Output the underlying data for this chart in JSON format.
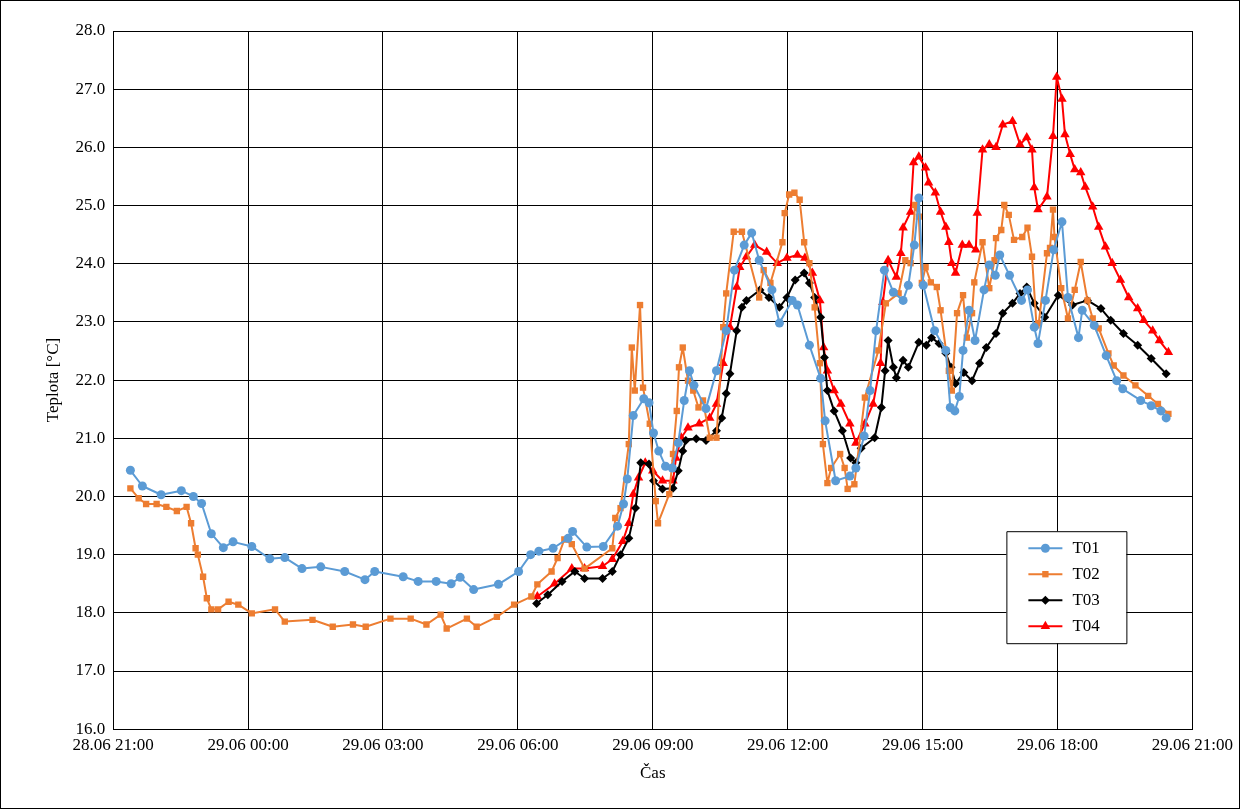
{
  "chart_data": {
    "type": "line",
    "xlabel": "Čas",
    "ylabel": "Teplota [°C]",
    "xlim": [
      "--06-28T21:00",
      "--06-29T21:00"
    ],
    "xticks": [
      {
        "value": "--06-28T21:00",
        "label": "28.06 21:00"
      },
      {
        "value": "--06-29T00:00",
        "label": "29.06 00:00"
      },
      {
        "value": "--06-29T03:00",
        "label": "29.06 03:00"
      },
      {
        "value": "--06-29T06:00",
        "label": "29.06 06:00"
      },
      {
        "value": "--06-29T09:00",
        "label": "29.06 09:00"
      },
      {
        "value": "--06-29T12:00",
        "label": "29.06 12:00"
      },
      {
        "value": "--06-29T15:00",
        "label": "29.06 15:00"
      },
      {
        "value": "--06-29T18:00",
        "label": "29.06 18:00"
      },
      {
        "value": "--06-29T21:00",
        "label": "29.06 21:00"
      }
    ],
    "ylim": [
      16,
      28
    ],
    "yticks": [
      {
        "value": 16,
        "label": "16.0"
      },
      {
        "value": 17,
        "label": "17.0"
      },
      {
        "value": 18,
        "label": "18.0"
      },
      {
        "value": 19,
        "label": "19.0"
      },
      {
        "value": 20,
        "label": "20.0"
      },
      {
        "value": 21,
        "label": "21.0"
      },
      {
        "value": 22,
        "label": "22.0"
      },
      {
        "value": 23,
        "label": "23.0"
      },
      {
        "value": 24,
        "label": "24.0"
      },
      {
        "value": 25,
        "label": "25.0"
      },
      {
        "value": 26,
        "label": "26.0"
      },
      {
        "value": 27,
        "label": "27.0"
      },
      {
        "value": 28,
        "label": "28.0"
      }
    ],
    "grid": true,
    "legend": "bottom right",
    "line_style": "solid",
    "series": [
      {
        "name": "T01",
        "color": "#5b9bd5",
        "marker": "circle",
        "x": [
          "--06-28T21:23",
          "--06-28T21:39",
          "--06-28T22:04",
          "--06-28T22:31",
          "--06-28T22:47",
          "--06-28T22:58",
          "--06-28T23:11",
          "--06-28T23:27",
          "--06-28T23:40",
          "--06-29T00:05",
          "--06-29T00:29",
          "--06-29T00:49",
          "--06-29T01:12",
          "--06-29T01:37",
          "--06-29T02:09",
          "--06-29T02:36",
          "--06-29T02:49",
          "--06-29T03:27",
          "--06-29T03:47",
          "--06-29T04:11",
          "--06-29T04:31",
          "--06-29T04:43",
          "--06-29T05:01",
          "--06-29T05:34",
          "--06-29T06:01",
          "--06-29T06:17",
          "--06-29T06:28",
          "--06-29T06:47",
          "--06-29T07:07",
          "--06-29T07:13",
          "--06-29T07:32",
          "--06-29T07:54",
          "--06-29T08:13",
          "--06-29T08:21",
          "--06-29T08:26",
          "--06-29T08:34",
          "--06-29T08:48",
          "--06-29T08:55",
          "--06-29T09:01",
          "--06-29T09:08",
          "--06-29T09:17",
          "--06-29T09:26",
          "--06-29T09:34",
          "--06-29T09:42",
          "--06-29T09:49",
          "--06-29T09:55",
          "--06-29T10:11",
          "--06-29T10:25",
          "--06-29T10:38",
          "--06-29T10:49",
          "--06-29T11:02",
          "--06-29T11:12",
          "--06-29T11:22",
          "--06-29T11:39",
          "--06-29T11:49",
          "--06-29T12:06",
          "--06-29T12:13",
          "--06-29T12:29",
          "--06-29T12:44",
          "--06-29T12:50",
          "--06-29T13:04",
          "--06-29T13:23",
          "--06-29T13:31",
          "--06-29T13:42",
          "--06-29T13:50",
          "--06-29T13:58",
          "--06-29T14:09",
          "--06-29T14:21",
          "--06-29T14:34",
          "--06-29T14:41",
          "--06-29T14:49",
          "--06-29T14:55",
          "--06-29T15:01",
          "--06-29T15:16",
          "--06-29T15:31",
          "--06-29T15:37",
          "--06-29T15:43",
          "--06-29T15:49",
          "--06-29T15:54",
          "--06-29T16:02",
          "--06-29T16:10",
          "--06-29T16:22",
          "--06-29T16:29",
          "--06-29T16:37",
          "--06-29T16:43",
          "--06-29T16:56",
          "--06-29T17:12",
          "--06-29T17:20",
          "--06-29T17:29",
          "--06-29T17:34",
          "--06-29T17:44",
          "--06-29T17:55",
          "--06-29T18:06",
          "--06-29T18:14",
          "--06-29T18:28",
          "--06-29T18:33",
          "--06-29T18:49",
          "--06-29T19:05",
          "--06-29T19:19",
          "--06-29T19:27",
          "--06-29T19:51",
          "--06-29T20:05",
          "--06-29T20:18",
          "--06-29T20:25"
        ],
        "values": [
          20.45,
          20.18,
          20.03,
          20.1,
          20.0,
          19.88,
          19.36,
          19.12,
          19.22,
          19.14,
          18.93,
          18.95,
          18.76,
          18.79,
          18.71,
          18.57,
          18.71,
          18.62,
          18.54,
          18.54,
          18.5,
          18.61,
          18.4,
          18.49,
          18.71,
          19.0,
          19.06,
          19.11,
          19.28,
          19.4,
          19.13,
          19.14,
          19.49,
          19.87,
          20.3,
          21.39,
          21.68,
          21.61,
          21.09,
          20.78,
          20.52,
          20.49,
          20.92,
          21.65,
          22.16,
          21.91,
          21.51,
          22.16,
          22.85,
          23.89,
          24.32,
          24.53,
          24.06,
          23.55,
          22.98,
          23.37,
          23.29,
          22.6,
          22.03,
          21.3,
          20.27,
          20.35,
          20.49,
          21.04,
          21.82,
          22.85,
          23.89,
          23.51,
          23.37,
          23.63,
          24.32,
          25.13,
          23.63,
          22.85,
          22.51,
          21.53,
          21.47,
          21.72,
          22.51,
          23.2,
          22.68,
          23.55,
          23.98,
          23.8,
          24.15,
          23.8,
          23.37,
          23.55,
          22.91,
          22.63,
          23.37,
          24.24,
          24.72,
          23.42,
          22.73,
          23.2,
          22.94,
          22.42,
          21.99,
          21.85,
          21.65,
          21.56,
          21.47,
          21.35
        ]
      },
      {
        "name": "T02",
        "color": "#ed7d31",
        "marker": "square",
        "x": [
          "--06-28T21:23",
          "--06-28T21:34",
          "--06-28T21:44",
          "--06-28T21:58",
          "--06-28T22:11",
          "--06-28T22:25",
          "--06-28T22:38",
          "--06-28T22:44",
          "--06-28T22:50",
          "--06-28T22:53",
          "--06-28T23:00",
          "--06-28T23:05",
          "--06-28T23:11",
          "--06-28T23:20",
          "--06-28T23:34",
          "--06-28T23:47",
          "--06-29T00:05",
          "--06-29T00:36",
          "--06-29T00:49",
          "--06-29T01:26",
          "--06-29T01:53",
          "--06-29T02:20",
          "--06-29T02:37",
          "--06-29T03:10",
          "--06-29T03:37",
          "--06-29T03:58",
          "--06-29T04:17",
          "--06-29T04:25",
          "--06-29T04:52",
          "--06-29T05:05",
          "--06-29T05:32",
          "--06-29T05:55",
          "--06-29T06:18",
          "--06-29T06:26",
          "--06-29T06:45",
          "--06-29T06:53",
          "--06-29T07:02",
          "--06-29T07:12",
          "--06-29T07:29",
          "--06-29T08:06",
          "--06-29T08:10",
          "--06-29T08:17",
          "--06-29T08:28",
          "--06-29T08:32",
          "--06-29T08:36",
          "--06-29T08:43",
          "--06-29T08:47",
          "--06-29T08:56",
          "--06-29T09:04",
          "--06-29T09:07",
          "--06-29T09:22",
          "--06-29T09:27",
          "--06-29T09:32",
          "--06-29T09:35",
          "--06-29T09:40",
          "--06-29T09:47",
          "--06-29T09:54",
          "--06-29T10:01",
          "--06-29T10:07",
          "--06-29T10:16",
          "--06-29T10:25",
          "--06-29T10:34",
          "--06-29T10:38",
          "--06-29T10:48",
          "--06-29T10:59",
          "--06-29T11:22",
          "--06-29T11:28",
          "--06-29T11:37",
          "--06-29T11:53",
          "--06-29T11:56",
          "--06-29T12:02",
          "--06-29T12:09",
          "--06-29T12:16",
          "--06-29T12:22",
          "--06-29T12:29",
          "--06-29T12:36",
          "--06-29T12:43",
          "--06-29T12:47",
          "--06-29T12:53",
          "--06-29T12:58",
          "--06-29T13:10",
          "--06-29T13:16",
          "--06-29T13:20",
          "--06-29T13:29",
          "--06-29T13:43",
          "--06-29T14:01",
          "--06-29T14:11",
          "--06-29T14:28",
          "--06-29T14:37",
          "--06-29T14:44",
          "--06-29T14:50",
          "--06-29T14:55",
          "--06-29T14:59",
          "--06-29T15:04",
          "--06-29T15:11",
          "--06-29T15:19",
          "--06-29T15:24",
          "--06-29T15:35",
          "--06-29T15:39",
          "--06-29T15:46",
          "--06-29T15:54",
          "--06-29T15:59",
          "--06-29T16:06",
          "--06-29T16:09",
          "--06-29T16:20",
          "--06-29T16:29",
          "--06-29T16:36",
          "--06-29T16:38",
          "--06-29T16:45",
          "--06-29T16:49",
          "--06-29T16:55",
          "--06-29T17:02",
          "--06-29T17:13",
          "--06-29T17:20",
          "--06-29T17:26",
          "--06-29T17:32",
          "--06-29T17:35",
          "--06-29T17:46",
          "--06-29T17:50",
          "--06-29T17:54",
          "--06-29T17:56",
          "--06-29T18:05",
          "--06-29T18:14",
          "--06-29T18:23",
          "--06-29T18:31",
          "--06-29T18:40",
          "--06-29T18:47",
          "--06-29T18:55",
          "--06-29T19:08",
          "--06-29T19:15",
          "--06-29T19:28",
          "--06-29T19:44",
          "--06-29T20:01",
          "--06-29T20:14",
          "--06-29T20:28"
        ],
        "values": [
          20.14,
          19.97,
          19.87,
          19.87,
          19.82,
          19.75,
          19.82,
          19.54,
          19.11,
          19.0,
          18.62,
          18.25,
          18.06,
          18.06,
          18.19,
          18.14,
          17.99,
          18.06,
          17.85,
          17.88,
          17.76,
          17.8,
          17.76,
          17.9,
          17.9,
          17.8,
          17.97,
          17.73,
          17.9,
          17.76,
          17.93,
          18.14,
          18.28,
          18.49,
          18.71,
          18.94,
          19.26,
          19.18,
          18.76,
          19.11,
          19.63,
          19.8,
          20.9,
          22.56,
          21.82,
          23.29,
          21.87,
          21.25,
          19.92,
          19.54,
          20.04,
          20.73,
          21.47,
          22.22,
          22.56,
          21.99,
          21.82,
          21.53,
          21.65,
          21.01,
          21.01,
          22.91,
          23.49,
          24.55,
          24.55,
          23.42,
          23.89,
          23.67,
          24.37,
          24.87,
          25.19,
          25.22,
          25.1,
          24.37,
          24.01,
          23.25,
          22.29,
          20.9,
          20.23,
          20.49,
          20.73,
          20.49,
          20.13,
          20.21,
          21.7,
          22.51,
          23.32,
          23.49,
          24.06,
          24.01,
          25.01,
          24.81,
          23.67,
          23.94,
          23.68,
          23.6,
          23.2,
          22.16,
          21.82,
          23.15,
          23.46,
          22.73,
          23.15,
          23.68,
          24.37,
          23.58,
          24.06,
          24.44,
          24.58,
          25.01,
          24.84,
          24.41,
          24.46,
          24.62,
          24.12,
          22.94,
          22.98,
          24.18,
          24.27,
          24.93,
          24.46,
          23.58,
          23.06,
          23.55,
          24.03,
          23.37,
          23.06,
          22.89,
          22.46,
          22.25,
          22.08,
          21.91,
          21.73,
          21.59,
          21.42
        ]
      },
      {
        "name": "T03",
        "color": "#000000",
        "marker": "diamond",
        "x": [
          "--06-29T06:25",
          "--06-29T06:40",
          "--06-29T06:59",
          "--06-29T07:16",
          "--06-29T07:29",
          "--06-29T07:53",
          "--06-29T08:06",
          "--06-29T08:17",
          "--06-29T08:28",
          "--06-29T08:37",
          "--06-29T08:44",
          "--06-29T08:55",
          "--06-29T09:01",
          "--06-29T09:13",
          "--06-29T09:27",
          "--06-29T09:34",
          "--06-29T09:40",
          "--06-29T09:44",
          "--06-29T09:58",
          "--06-29T10:11",
          "--06-29T10:25",
          "--06-29T10:32",
          "--06-29T10:38",
          "--06-29T10:43",
          "--06-29T10:52",
          "--06-29T10:59",
          "--06-29T11:05",
          "--06-29T11:23",
          "--06-29T11:35",
          "--06-29T11:49",
          "--06-29T11:59",
          "--06-29T12:10",
          "--06-29T12:22",
          "--06-29T12:29",
          "--06-29T12:36",
          "--06-29T12:44",
          "--06-29T12:49",
          "--06-29T12:53",
          "--06-29T13:02",
          "--06-29T13:13",
          "--06-29T13:24",
          "--06-29T13:31",
          "--06-29T13:38",
          "--06-29T13:56",
          "--06-29T14:05",
          "--06-29T14:10",
          "--06-29T14:14",
          "--06-29T14:21",
          "--06-29T14:25",
          "--06-29T14:34",
          "--06-29T14:41",
          "--06-29T14:55",
          "--06-29T15:05",
          "--06-29T15:12",
          "--06-29T15:22",
          "--06-29T15:31",
          "--06-29T15:38",
          "--06-29T15:44",
          "--06-29T15:55",
          "--06-29T16:06",
          "--06-29T16:16",
          "--06-29T16:25",
          "--06-29T16:38",
          "--06-29T16:47",
          "--06-29T17:00",
          "--06-29T17:10",
          "--06-29T17:19",
          "--06-29T17:29",
          "--06-29T17:43",
          "--06-29T18:01",
          "--06-29T18:20",
          "--06-29T18:40",
          "--06-29T18:58",
          "--06-29T19:11",
          "--06-29T19:28",
          "--06-29T19:47",
          "--06-29T20:05",
          "--06-29T20:25"
        ],
        "values": [
          18.16,
          18.31,
          18.54,
          18.71,
          18.59,
          18.59,
          18.71,
          19.0,
          19.28,
          19.8,
          20.58,
          20.56,
          20.27,
          20.13,
          20.14,
          20.44,
          20.78,
          20.96,
          20.99,
          20.96,
          21.13,
          21.35,
          21.77,
          22.11,
          22.85,
          23.25,
          23.37,
          23.55,
          23.42,
          23.25,
          23.42,
          23.72,
          23.84,
          23.67,
          23.42,
          23.08,
          22.39,
          21.82,
          21.47,
          21.13,
          20.66,
          20.58,
          20.83,
          21.01,
          21.53,
          22.16,
          22.68,
          22.22,
          22.04,
          22.34,
          22.22,
          22.65,
          22.6,
          22.73,
          22.63,
          22.46,
          22.22,
          21.94,
          22.13,
          21.99,
          22.29,
          22.56,
          22.8,
          23.15,
          23.32,
          23.49,
          23.6,
          23.32,
          23.08,
          23.46,
          23.29,
          23.37,
          23.23,
          23.03,
          22.8,
          22.6,
          22.37,
          22.11
        ]
      },
      {
        "name": "T04",
        "color": "#ff0000",
        "marker": "triangle",
        "x": [
          "--06-29T06:26",
          "--06-29T06:49",
          "--06-29T07:12",
          "--06-29T07:29",
          "--06-29T07:53",
          "--06-29T08:06",
          "--06-29T08:20",
          "--06-29T08:28",
          "--06-29T08:34",
          "--06-29T08:41",
          "--06-29T08:50",
          "--06-29T09:00",
          "--06-29T09:13",
          "--06-29T09:27",
          "--06-29T09:31",
          "--06-29T09:38",
          "--06-29T09:47",
          "--06-29T10:02",
          "--06-29T10:16",
          "--06-29T10:25",
          "--06-29T10:34",
          "--06-29T10:43",
          "--06-29T10:52",
          "--06-29T10:56",
          "--06-29T11:05",
          "--06-29T11:16",
          "--06-29T11:32",
          "--06-29T11:46",
          "--06-29T11:59",
          "--06-29T12:13",
          "--06-29T12:23",
          "--06-29T12:33",
          "--06-29T12:43",
          "--06-29T12:48",
          "--06-29T12:53",
          "--06-29T13:02",
          "--06-29T13:11",
          "--06-29T13:23",
          "--06-29T13:31",
          "--06-29T13:43",
          "--06-29T13:54",
          "--06-29T14:04",
          "--06-29T14:07",
          "--06-29T14:14",
          "--06-29T14:25",
          "--06-29T14:31",
          "--06-29T14:34",
          "--06-29T14:44",
          "--06-29T14:48",
          "--06-29T14:55",
          "--06-29T15:04",
          "--06-29T15:08",
          "--06-29T15:17",
          "--06-29T15:24",
          "--06-29T15:31",
          "--06-29T15:35",
          "--06-29T15:39",
          "--06-29T15:44",
          "--06-29T15:53",
          "--06-29T16:02",
          "--06-29T16:11",
          "--06-29T16:13",
          "--06-29T16:20",
          "--06-29T16:29",
          "--06-29T16:38",
          "--06-29T16:47",
          "--06-29T17:00",
          "--06-29T17:10",
          "--06-29T17:19",
          "--06-29T17:26",
          "--06-29T17:29",
          "--06-29T17:34",
          "--06-29T17:46",
          "--06-29T17:54",
          "--06-29T17:59",
          "--06-29T18:06",
          "--06-29T18:10",
          "--06-29T18:17",
          "--06-29T18:23",
          "--06-29T18:31",
          "--06-29T18:37",
          "--06-29T18:47",
          "--06-29T18:55",
          "--06-29T19:04",
          "--06-29T19:13",
          "--06-29T19:24",
          "--06-29T19:35",
          "--06-29T19:47",
          "--06-29T19:55",
          "--06-29T20:07",
          "--06-29T20:16",
          "--06-29T20:28"
        ],
        "values": [
          18.28,
          18.5,
          18.76,
          18.76,
          18.8,
          18.92,
          19.23,
          19.54,
          20.04,
          20.32,
          20.58,
          20.44,
          20.27,
          20.27,
          20.66,
          21.01,
          21.18,
          21.25,
          21.35,
          21.59,
          22.29,
          22.91,
          23.6,
          23.94,
          24.12,
          24.32,
          24.2,
          24.01,
          24.1,
          24.15,
          24.1,
          23.84,
          23.37,
          22.56,
          22.16,
          21.82,
          21.59,
          21.25,
          20.92,
          21.25,
          21.59,
          22.29,
          23.34,
          24.06,
          23.77,
          24.18,
          24.62,
          24.89,
          25.74,
          25.84,
          25.65,
          25.39,
          25.22,
          24.89,
          24.63,
          24.37,
          24.01,
          23.84,
          24.32,
          24.32,
          24.24,
          24.87,
          25.96,
          26.05,
          26.0,
          26.39,
          26.45,
          26.05,
          26.17,
          25.96,
          25.31,
          24.93,
          25.15,
          26.19,
          27.21,
          26.83,
          26.22,
          25.88,
          25.62,
          25.57,
          25.32,
          24.98,
          24.63,
          24.29,
          24.01,
          23.72,
          23.42,
          23.23,
          23.03,
          22.85,
          22.68,
          22.48
        ]
      }
    ]
  }
}
